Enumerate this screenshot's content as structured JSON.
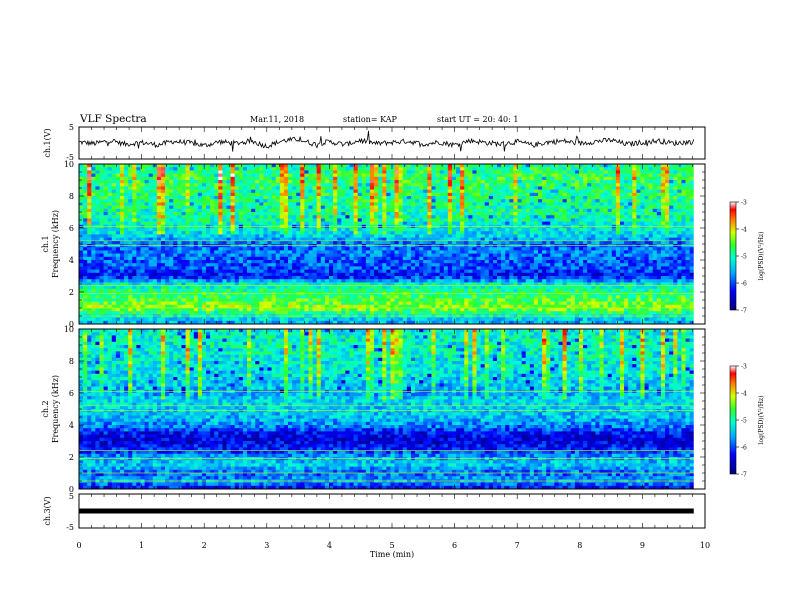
{
  "header": {
    "title": "VLF Spectra",
    "date": "Mar.11, 2018",
    "station": "station= KAP",
    "start_ut": "start  UT  =   20: 40: 1"
  },
  "chart_data": [
    {
      "type": "line",
      "panel": "ch1-waveform",
      "ylabel": "ch.1(V)",
      "ylim": [
        -5,
        5
      ],
      "y_ticks": [
        "5",
        "-5"
      ],
      "xlim": [
        0,
        10
      ],
      "x_extent_min": 9.82,
      "x": [
        0,
        0.25,
        0.5,
        0.75,
        1.0,
        1.25,
        1.5,
        1.75,
        2.0,
        2.25,
        2.5,
        2.75,
        3.0,
        3.25,
        3.5,
        3.75,
        4.0,
        4.25,
        4.5,
        4.75,
        5.0,
        5.25,
        5.5,
        5.75,
        6.0,
        6.25,
        6.5,
        6.75,
        7.0,
        7.25,
        7.5,
        7.75,
        8.0,
        8.25,
        8.5,
        8.75,
        9.0,
        9.25,
        9.5,
        9.8
      ],
      "values": [
        0.3,
        -0.2,
        0.8,
        -0.4,
        0.2,
        -0.6,
        0.5,
        0.1,
        -0.8,
        0.4,
        -0.1,
        0.6,
        -1.0,
        0.7,
        1.2,
        -0.3,
        0.4,
        -0.5,
        0.9,
        -0.2,
        0.2,
        0.6,
        -0.4,
        0.3,
        -0.6,
        0.8,
        0.1,
        -0.3,
        0.4,
        -0.7,
        0.3,
        0.6,
        -0.2,
        0.5,
        0.9,
        -0.4,
        0.2,
        0.7,
        -0.1,
        0.4
      ]
    },
    {
      "type": "heatmap",
      "panel": "ch1-spectrogram",
      "ylabel": "ch.1",
      "ylabel2": "Frequency (kHz)",
      "ylim": [
        0,
        10
      ],
      "y_ticks": [
        "0",
        "2",
        "4",
        "6",
        "8",
        "10"
      ],
      "xlim": [
        0,
        10
      ],
      "x_extent_min": 9.82,
      "colorbar": {
        "label": "log(PSD)(V²/Hz)",
        "range": [
          -7,
          -3
        ],
        "ticks": [
          "-3",
          "-4",
          "-5",
          "-6",
          "-7"
        ]
      },
      "freq_profile_khz": [
        0,
        0.5,
        1.0,
        1.5,
        2.0,
        2.5,
        3.0,
        3.5,
        4.0,
        4.5,
        5.0,
        5.5,
        6.0,
        6.5,
        7.0,
        7.5,
        8.0,
        8.5,
        9.0,
        9.5,
        10.0
      ],
      "mean_log_psd": [
        -5.6,
        -5.2,
        -4.3,
        -4.6,
        -4.8,
        -5.2,
        -6.3,
        -6.0,
        -5.9,
        -5.8,
        -5.9,
        -5.4,
        -5.2,
        -5.0,
        -4.9,
        -4.9,
        -4.8,
        -4.8,
        -4.7,
        -4.8,
        -4.9
      ]
    },
    {
      "type": "heatmap",
      "panel": "ch2-spectrogram",
      "ylabel": "ch.2",
      "ylabel2": "Frequency (kHz)",
      "ylim": [
        0,
        10
      ],
      "y_ticks": [
        "0",
        "2",
        "4",
        "6",
        "8",
        "10"
      ],
      "xlim": [
        0,
        10
      ],
      "x_extent_min": 9.82,
      "colorbar": {
        "label": "log(PSD)(V²/Hz)",
        "range": [
          -7,
          -3
        ],
        "ticks": [
          "-3",
          "-4",
          "-5",
          "-6",
          "-7"
        ]
      },
      "freq_profile_khz": [
        0,
        0.5,
        1.0,
        1.5,
        2.0,
        2.5,
        3.0,
        3.5,
        4.0,
        4.5,
        5.0,
        5.5,
        6.0,
        6.5,
        7.0,
        7.5,
        8.0,
        8.5,
        9.0,
        9.5,
        10.0
      ],
      "mean_log_psd": [
        -6.4,
        -5.6,
        -5.9,
        -5.4,
        -5.6,
        -6.2,
        -6.5,
        -6.3,
        -5.7,
        -5.5,
        -5.4,
        -5.3,
        -5.6,
        -5.4,
        -5.3,
        -5.2,
        -5.2,
        -5.1,
        -5.1,
        -5.1,
        -5.2
      ]
    },
    {
      "type": "line",
      "panel": "ch3-waveform",
      "ylabel": "ch.3(V)",
      "ylim": [
        -5,
        5
      ],
      "y_ticks": [
        "5",
        "-5"
      ],
      "xlim": [
        0,
        10
      ],
      "x_extent_min": 9.82,
      "x": [
        0,
        9.82
      ],
      "values": [
        0,
        0
      ]
    }
  ],
  "x_axis": {
    "label": "Time  (min)",
    "ticks": [
      "0",
      "1",
      "2",
      "3",
      "4",
      "5",
      "6",
      "7",
      "8",
      "9",
      "10"
    ]
  }
}
